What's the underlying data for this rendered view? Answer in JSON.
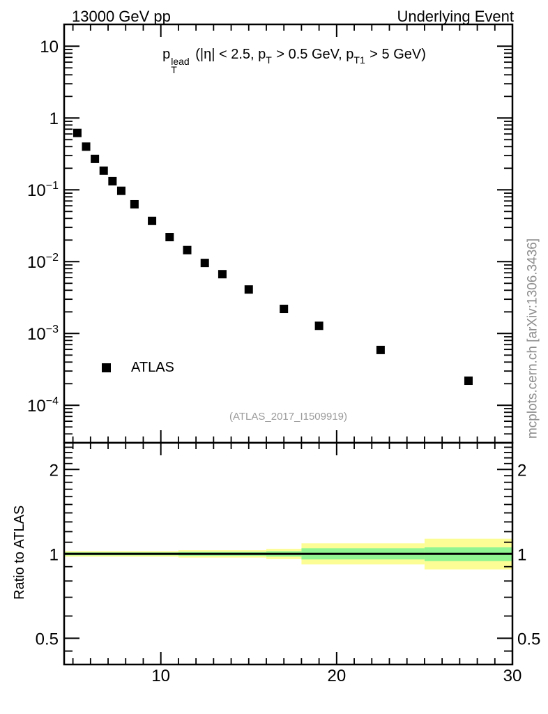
{
  "titles": {
    "left": "13000 GeV pp",
    "right": "Underlying Event"
  },
  "annotation": {
    "base": "p",
    "sup": "lead",
    "sub": "T",
    "rest1": " (|η| < 2.5, p",
    "sub1": "T",
    "rest2": " > 0.5 GeV, p",
    "sub2": "T1",
    "rest3": " > 5 GeV)"
  },
  "legend": {
    "label": "ATLAS",
    "marker": "filled-square"
  },
  "watermark": {
    "text": "(ATLAS_2017_I1509919)"
  },
  "side_note": {
    "text": "mcplots.cern.ch [arXiv:1306.3436]"
  },
  "axes": {
    "ratio_title": "Ratio to ATLAS",
    "x_tick_labels": [
      "10",
      "20",
      "30"
    ]
  },
  "colors": {
    "axis": "#000000",
    "marker": "#000000",
    "gray_watermark": "#9b9b9b",
    "gray_sidenote": "#8d8d8d",
    "band_outer": "#fdfd96",
    "band_inner": "#90f590"
  },
  "chart_data": {
    "type": "scatter",
    "title": "pT^lead (|η| < 2.5, pT > 0.5 GeV, pT1 > 5 GeV)",
    "top_left_label": "13000 GeV pp",
    "top_right_label": "Underlying Event",
    "xlim": [
      4.5,
      30
    ],
    "xticks": [
      10,
      20,
      30
    ],
    "xminor_step": 1,
    "xlabel": "",
    "main_panel": {
      "yscale": "log",
      "ylim": [
        3e-05,
        20
      ],
      "grid": false,
      "yticks": [
        {
          "v": 10,
          "base": "10",
          "exp": ""
        },
        {
          "v": 1,
          "base": "1",
          "exp": ""
        },
        {
          "v": 0.1,
          "base": "10",
          "exp": "−1"
        },
        {
          "v": 0.01,
          "base": "10",
          "exp": "−2"
        },
        {
          "v": 0.001,
          "base": "10",
          "exp": "−3"
        },
        {
          "v": 0.0001,
          "base": "10",
          "exp": "−4"
        }
      ],
      "series": [
        {
          "name": "ATLAS",
          "marker": "filled-square",
          "color": "#000000",
          "x": [
            5.25,
            5.75,
            6.25,
            6.75,
            7.25,
            7.75,
            8.5,
            9.5,
            10.5,
            11.5,
            12.5,
            13.5,
            15,
            17,
            19,
            22.5,
            27.5
          ],
          "y": [
            0.62,
            0.4,
            0.27,
            0.185,
            0.132,
            0.097,
            0.063,
            0.037,
            0.022,
            0.0145,
            0.0096,
            0.0067,
            0.0041,
            0.0022,
            0.00128,
            0.00059,
            0.00022
          ]
        }
      ]
    },
    "ratio_panel": {
      "yscale": "log",
      "ylim": [
        0.4,
        2.49
      ],
      "ylabel": "Ratio to ATLAS",
      "reference_line": 1.0,
      "yticks": [
        {
          "v": 2,
          "label": "2"
        },
        {
          "v": 1,
          "label": "1"
        },
        {
          "v": 0.5,
          "label": "0.5"
        }
      ],
      "yminors": [
        0.45,
        0.6,
        0.7,
        0.8,
        0.9,
        1.1,
        1.2,
        1.3,
        1.4,
        1.5,
        1.6,
        1.7,
        1.8,
        1.9,
        2.1,
        2.2,
        2.3,
        2.4
      ],
      "band_colors": {
        "outer": "#fdfd96",
        "inner": "#90f590"
      },
      "bands": [
        {
          "x0": 4.5,
          "x1": 11,
          "outer": [
            0.977,
            1.023
          ],
          "inner": [
            0.988,
            1.012
          ]
        },
        {
          "x0": 11,
          "x1": 16,
          "outer": [
            0.97,
            1.03
          ],
          "inner": [
            0.984,
            1.016
          ]
        },
        {
          "x0": 16,
          "x1": 18,
          "outer": [
            0.958,
            1.042
          ],
          "inner": [
            0.978,
            1.022
          ]
        },
        {
          "x0": 18,
          "x1": 25,
          "outer": [
            0.917,
            1.09
          ],
          "inner": [
            0.955,
            1.047
          ]
        },
        {
          "x0": 25,
          "x1": 30,
          "outer": [
            0.88,
            1.132
          ],
          "inner": [
            0.942,
            1.055
          ]
        }
      ]
    }
  }
}
